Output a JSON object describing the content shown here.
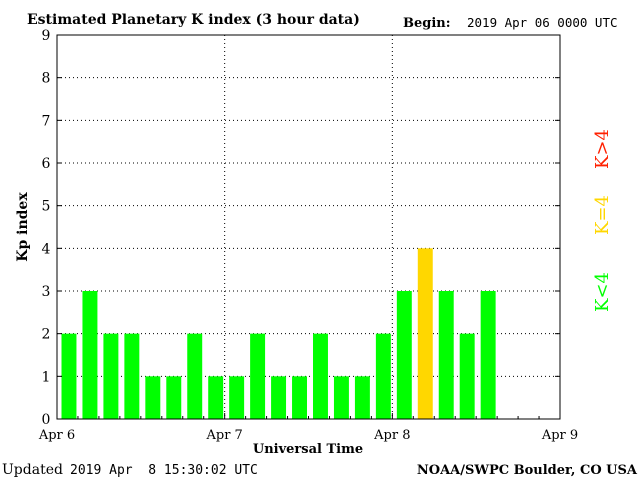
{
  "header": {
    "title": "Estimated Planetary K index (3 hour data)",
    "begin_label": "Begin:",
    "begin_value": "2019 Apr 06 0000 UTC"
  },
  "footer": {
    "updated_label": "Updated",
    "updated_value": "2019 Apr  8 15:30:02 UTC",
    "credit": "NOAA/SWPC Boulder, CO USA"
  },
  "legend": {
    "high": "K>4",
    "equal": "K=4",
    "low": "K<4"
  },
  "colors": {
    "low": "#00ff00",
    "equal": "#ffd700",
    "high": "#ff2000",
    "grid": "#000000"
  },
  "chart_data": {
    "type": "bar",
    "title": "Estimated Planetary K index (3 hour data)",
    "xlabel": "Universal Time",
    "ylabel": "Kp index",
    "ylim": [
      0,
      9
    ],
    "yticks": [
      0,
      1,
      2,
      3,
      4,
      5,
      6,
      7,
      8,
      9
    ],
    "x_day_ticks": [
      "Apr 6",
      "Apr 7",
      "Apr 8",
      "Apr 9"
    ],
    "interval_hours": 3,
    "grid": "dotted",
    "values": [
      2,
      3,
      2,
      2,
      1,
      1,
      2,
      1,
      1,
      2,
      1,
      1,
      2,
      1,
      1,
      2,
      3,
      4,
      3,
      2,
      3
    ]
  }
}
